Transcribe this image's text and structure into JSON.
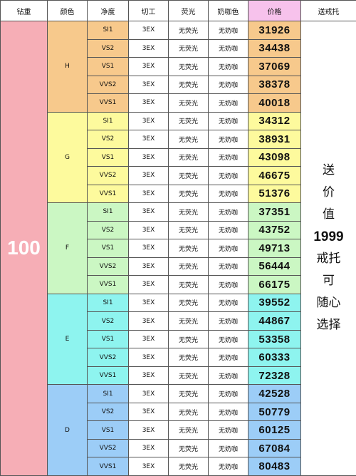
{
  "headers": [
    "钻重",
    "颜色",
    "净度",
    "切工",
    "荧光",
    "奶咖色",
    "价格",
    "送戒托"
  ],
  "carat": "100",
  "gift_lines": [
    "送",
    "价",
    "值",
    "1999",
    "戒托",
    "可",
    "随心",
    "选择"
  ],
  "colors": {
    "carat_bg": "#f6aeb6",
    "price_header_bg": "#f7c2ec",
    "group_bg": {
      "H": "#f7c98c",
      "G": "#fdfa9d",
      "F": "#cbf7c3",
      "E": "#8ef4ef",
      "D": "#9ccdf7"
    }
  },
  "groups": [
    {
      "color": "H",
      "rows": [
        {
          "clarity": "SI1",
          "cut": "3EX",
          "fluorescence": "无荧光",
          "milky": "无奶咖",
          "price": "31926"
        },
        {
          "clarity": "VS2",
          "cut": "3EX",
          "fluorescence": "无荧光",
          "milky": "无奶咖",
          "price": "34438"
        },
        {
          "clarity": "VS1",
          "cut": "3EX",
          "fluorescence": "无荧光",
          "milky": "无奶咖",
          "price": "37069"
        },
        {
          "clarity": "VVS2",
          "cut": "3EX",
          "fluorescence": "无荧光",
          "milky": "无奶咖",
          "price": "38378"
        },
        {
          "clarity": "VVS1",
          "cut": "3EX",
          "fluorescence": "无荧光",
          "milky": "无奶咖",
          "price": "40018"
        }
      ]
    },
    {
      "color": "G",
      "rows": [
        {
          "clarity": "SI1",
          "cut": "3EX",
          "fluorescence": "无荧光",
          "milky": "无奶咖",
          "price": "34312"
        },
        {
          "clarity": "VS2",
          "cut": "3EX",
          "fluorescence": "无荧光",
          "milky": "无奶咖",
          "price": "38931"
        },
        {
          "clarity": "VS1",
          "cut": "3EX",
          "fluorescence": "无荧光",
          "milky": "无奶咖",
          "price": "43098"
        },
        {
          "clarity": "VVS2",
          "cut": "3EX",
          "fluorescence": "无荧光",
          "milky": "无奶咖",
          "price": "46675"
        },
        {
          "clarity": "VVS1",
          "cut": "3EX",
          "fluorescence": "无荧光",
          "milky": "无奶咖",
          "price": "51376"
        }
      ]
    },
    {
      "color": "F",
      "rows": [
        {
          "clarity": "SI1",
          "cut": "3EX",
          "fluorescence": "无荧光",
          "milky": "无奶咖",
          "price": "37351"
        },
        {
          "clarity": "VS2",
          "cut": "3EX",
          "fluorescence": "无荧光",
          "milky": "无奶咖",
          "price": "43752"
        },
        {
          "clarity": "VS1",
          "cut": "3EX",
          "fluorescence": "无荧光",
          "milky": "无奶咖",
          "price": "49713"
        },
        {
          "clarity": "VVS2",
          "cut": "3EX",
          "fluorescence": "无荧光",
          "milky": "无奶咖",
          "price": "56444"
        },
        {
          "clarity": "VVS1",
          "cut": "3EX",
          "fluorescence": "无荧光",
          "milky": "无奶咖",
          "price": "66175"
        }
      ]
    },
    {
      "color": "E",
      "rows": [
        {
          "clarity": "SI1",
          "cut": "3EX",
          "fluorescence": "无荧光",
          "milky": "无奶咖",
          "price": "39552"
        },
        {
          "clarity": "VS2",
          "cut": "3EX",
          "fluorescence": "无荧光",
          "milky": "无奶咖",
          "price": "44867"
        },
        {
          "clarity": "VS1",
          "cut": "3EX",
          "fluorescence": "无荧光",
          "milky": "无奶咖",
          "price": "53358"
        },
        {
          "clarity": "VVS2",
          "cut": "3EX",
          "fluorescence": "无荧光",
          "milky": "无奶咖",
          "price": "60333"
        },
        {
          "clarity": "VVS1",
          "cut": "3EX",
          "fluorescence": "无荧光",
          "milky": "无奶咖",
          "price": "72328"
        }
      ]
    },
    {
      "color": "D",
      "rows": [
        {
          "clarity": "SI1",
          "cut": "3EX",
          "fluorescence": "无荧光",
          "milky": "无奶咖",
          "price": "42528"
        },
        {
          "clarity": "VS2",
          "cut": "3EX",
          "fluorescence": "无荧光",
          "milky": "无奶咖",
          "price": "50779"
        },
        {
          "clarity": "VS1",
          "cut": "3EX",
          "fluorescence": "无荧光",
          "milky": "无奶咖",
          "price": "60125"
        },
        {
          "clarity": "VVS2",
          "cut": "3EX",
          "fluorescence": "无荧光",
          "milky": "无奶咖",
          "price": "67084"
        },
        {
          "clarity": "VVS1",
          "cut": "3EX",
          "fluorescence": "无荧光",
          "milky": "无奶咖",
          "price": "80483"
        }
      ]
    }
  ]
}
